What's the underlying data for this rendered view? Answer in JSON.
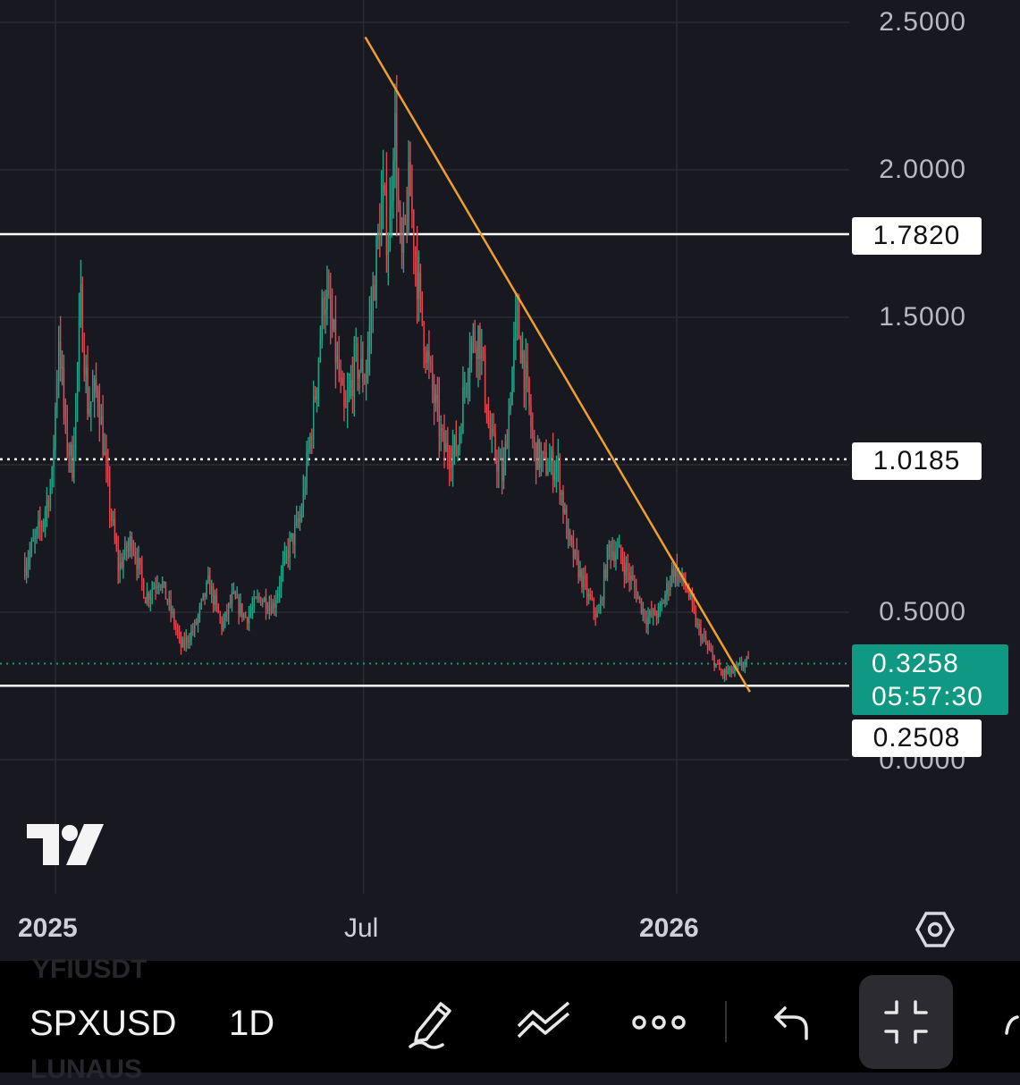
{
  "chart_data": {
    "type": "candlestick",
    "symbol": "SPXUSD",
    "interval": "1D",
    "y_ticks": [
      "2.5000",
      "2.0000",
      "1.5000",
      "0.5000",
      "0.0000"
    ],
    "x_ticks": [
      "2025",
      "Jul",
      "2026"
    ],
    "horizontal_levels": [
      {
        "value": 1.782,
        "label": "1.7820",
        "style": "solid"
      },
      {
        "value": 1.0185,
        "label": "1.0185",
        "style": "dotted"
      },
      {
        "value": 0.2508,
        "label": "0.2508",
        "style": "solid"
      }
    ],
    "last_price": {
      "value": 0.3258,
      "label": "0.3258",
      "countdown": "05:57:30"
    },
    "trendline": {
      "from": {
        "date": "2025-07-02",
        "price": 2.45
      },
      "to": {
        "date": "2026-02-13",
        "price": 0.23
      }
    },
    "price_path": [
      {
        "date": "2024-12-14",
        "price": 0.66
      },
      {
        "date": "2024-12-24",
        "price": 0.8
      },
      {
        "date": "2024-12-30",
        "price": 0.95
      },
      {
        "date": "2025-01-03",
        "price": 1.45
      },
      {
        "date": "2025-01-07",
        "price": 1.1
      },
      {
        "date": "2025-01-11",
        "price": 1.0
      },
      {
        "date": "2025-01-16",
        "price": 1.55
      },
      {
        "date": "2025-01-20",
        "price": 1.2
      },
      {
        "date": "2025-01-26",
        "price": 1.25
      },
      {
        "date": "2025-02-01",
        "price": 0.9
      },
      {
        "date": "2025-02-07",
        "price": 0.65
      },
      {
        "date": "2025-02-15",
        "price": 0.75
      },
      {
        "date": "2025-02-23",
        "price": 0.55
      },
      {
        "date": "2025-03-03",
        "price": 0.62
      },
      {
        "date": "2025-03-10",
        "price": 0.5
      },
      {
        "date": "2025-03-16",
        "price": 0.38
      },
      {
        "date": "2025-03-24",
        "price": 0.45
      },
      {
        "date": "2025-04-01",
        "price": 0.6
      },
      {
        "date": "2025-04-09",
        "price": 0.45
      },
      {
        "date": "2025-04-15",
        "price": 0.55
      },
      {
        "date": "2025-04-23",
        "price": 0.48
      },
      {
        "date": "2025-05-01",
        "price": 0.55
      },
      {
        "date": "2025-05-09",
        "price": 0.52
      },
      {
        "date": "2025-05-17",
        "price": 0.7
      },
      {
        "date": "2025-05-25",
        "price": 0.82
      },
      {
        "date": "2025-06-02",
        "price": 1.2
      },
      {
        "date": "2025-06-08",
        "price": 1.6
      },
      {
        "date": "2025-06-14",
        "price": 1.4
      },
      {
        "date": "2025-06-20",
        "price": 1.15
      },
      {
        "date": "2025-06-26",
        "price": 1.35
      },
      {
        "date": "2025-07-02",
        "price": 1.3
      },
      {
        "date": "2025-07-06",
        "price": 1.55
      },
      {
        "date": "2025-07-12",
        "price": 1.9
      },
      {
        "date": "2025-07-16",
        "price": 1.75
      },
      {
        "date": "2025-07-19",
        "price": 2.2
      },
      {
        "date": "2025-07-23",
        "price": 1.65
      },
      {
        "date": "2025-07-28",
        "price": 1.95
      },
      {
        "date": "2025-08-03",
        "price": 1.55
      },
      {
        "date": "2025-08-09",
        "price": 1.3
      },
      {
        "date": "2025-08-17",
        "price": 1.05
      },
      {
        "date": "2025-08-25",
        "price": 1.05
      },
      {
        "date": "2025-09-01",
        "price": 1.4
      },
      {
        "date": "2025-09-07",
        "price": 1.45
      },
      {
        "date": "2025-09-13",
        "price": 1.1
      },
      {
        "date": "2025-09-21",
        "price": 0.95
      },
      {
        "date": "2025-09-29",
        "price": 1.5
      },
      {
        "date": "2025-10-03",
        "price": 1.35
      },
      {
        "date": "2025-10-09",
        "price": 1.05
      },
      {
        "date": "2025-10-15",
        "price": 1.0
      },
      {
        "date": "2025-10-23",
        "price": 1.0
      },
      {
        "date": "2025-10-29",
        "price": 0.75
      },
      {
        "date": "2025-11-04",
        "price": 0.65
      },
      {
        "date": "2025-11-10",
        "price": 0.55
      },
      {
        "date": "2025-11-16",
        "price": 0.48
      },
      {
        "date": "2025-11-22",
        "price": 0.72
      },
      {
        "date": "2025-11-28",
        "price": 0.7
      },
      {
        "date": "2025-12-06",
        "price": 0.6
      },
      {
        "date": "2025-12-14",
        "price": 0.48
      },
      {
        "date": "2025-12-22",
        "price": 0.5
      },
      {
        "date": "2025-12-30",
        "price": 0.65
      },
      {
        "date": "2026-01-07",
        "price": 0.58
      },
      {
        "date": "2026-01-13",
        "price": 0.45
      },
      {
        "date": "2026-01-19",
        "price": 0.38
      },
      {
        "date": "2026-01-27",
        "price": 0.29
      },
      {
        "date": "2026-02-04",
        "price": 0.3
      },
      {
        "date": "2026-02-10",
        "price": 0.33
      },
      {
        "date": "2026-02-13",
        "price": 0.3258
      }
    ],
    "grid": true,
    "up_color": "#22a587",
    "down_color": "#e5464f",
    "trendline_color": "#f0a02a",
    "last_price_color": "#109982"
  },
  "toolbar": {
    "symbol": "SPXUSD",
    "interval": "1D",
    "ghost_symbol_above": "YFIUSDT",
    "ghost_symbol_below": "LUNAUS"
  },
  "icons": {
    "logo": "tradingview-logo",
    "settings": "settings-hexagon-icon",
    "pen": "pen-icon",
    "drawing": "drawing-tools-icon",
    "more": "more-icon",
    "undo": "undo-icon",
    "fullscreen": "exit-fullscreen-icon"
  }
}
